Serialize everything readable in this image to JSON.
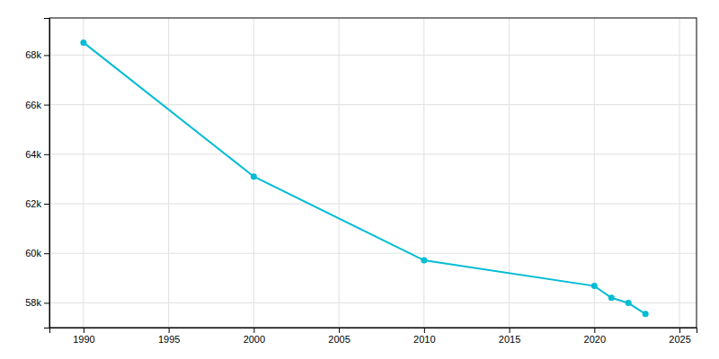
{
  "chart_data": {
    "type": "line",
    "x": [
      1990,
      2000,
      2010,
      2020,
      2021,
      2022,
      2023
    ],
    "values": [
      68507,
      63096,
      59715,
      58681,
      58205,
      57994,
      57550
    ],
    "color": "#00bcd4",
    "marker": "circle",
    "xlim": [
      1988,
      2026
    ],
    "ylim": [
      57000,
      69500
    ],
    "xticks": [
      1990,
      1995,
      2000,
      2005,
      2010,
      2015,
      2020,
      2025
    ],
    "yticks": [
      {
        "value": 58000,
        "label": "58k"
      },
      {
        "value": 60000,
        "label": "60k"
      },
      {
        "value": 62000,
        "label": "62k"
      },
      {
        "value": 64000,
        "label": "64k"
      },
      {
        "value": 66000,
        "label": "66k"
      },
      {
        "value": 68000,
        "label": "68k"
      }
    ],
    "grid": true
  }
}
